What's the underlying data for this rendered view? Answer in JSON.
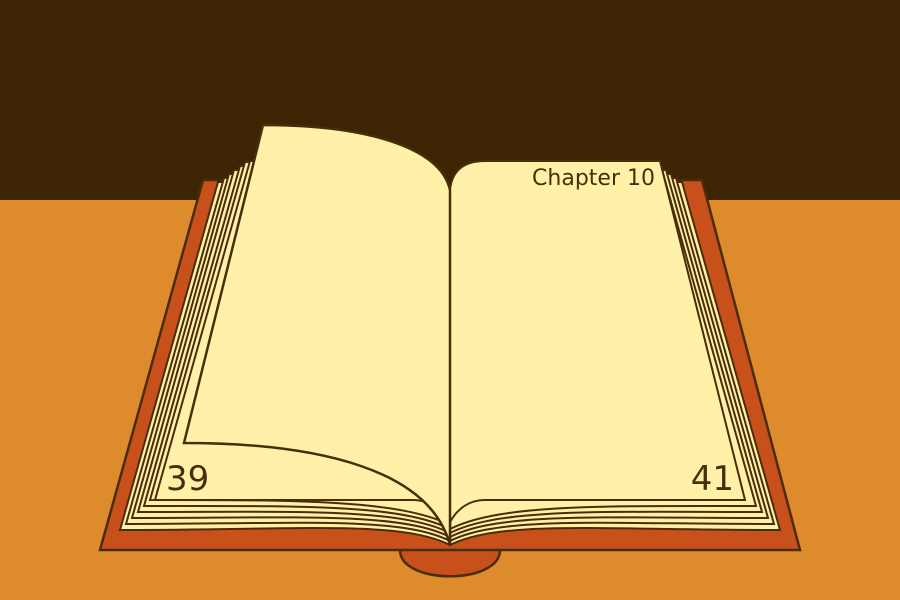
{
  "book": {
    "left_page_number": "39",
    "right_page_number": "41",
    "right_page_header": "Chapter 10"
  },
  "colors": {
    "wall": "#3d2503",
    "table": "#dd8b2c",
    "cover": "#c8511b",
    "page": "#fff1a8",
    "outline": "#4a2d08",
    "text": "#4a2d08"
  }
}
